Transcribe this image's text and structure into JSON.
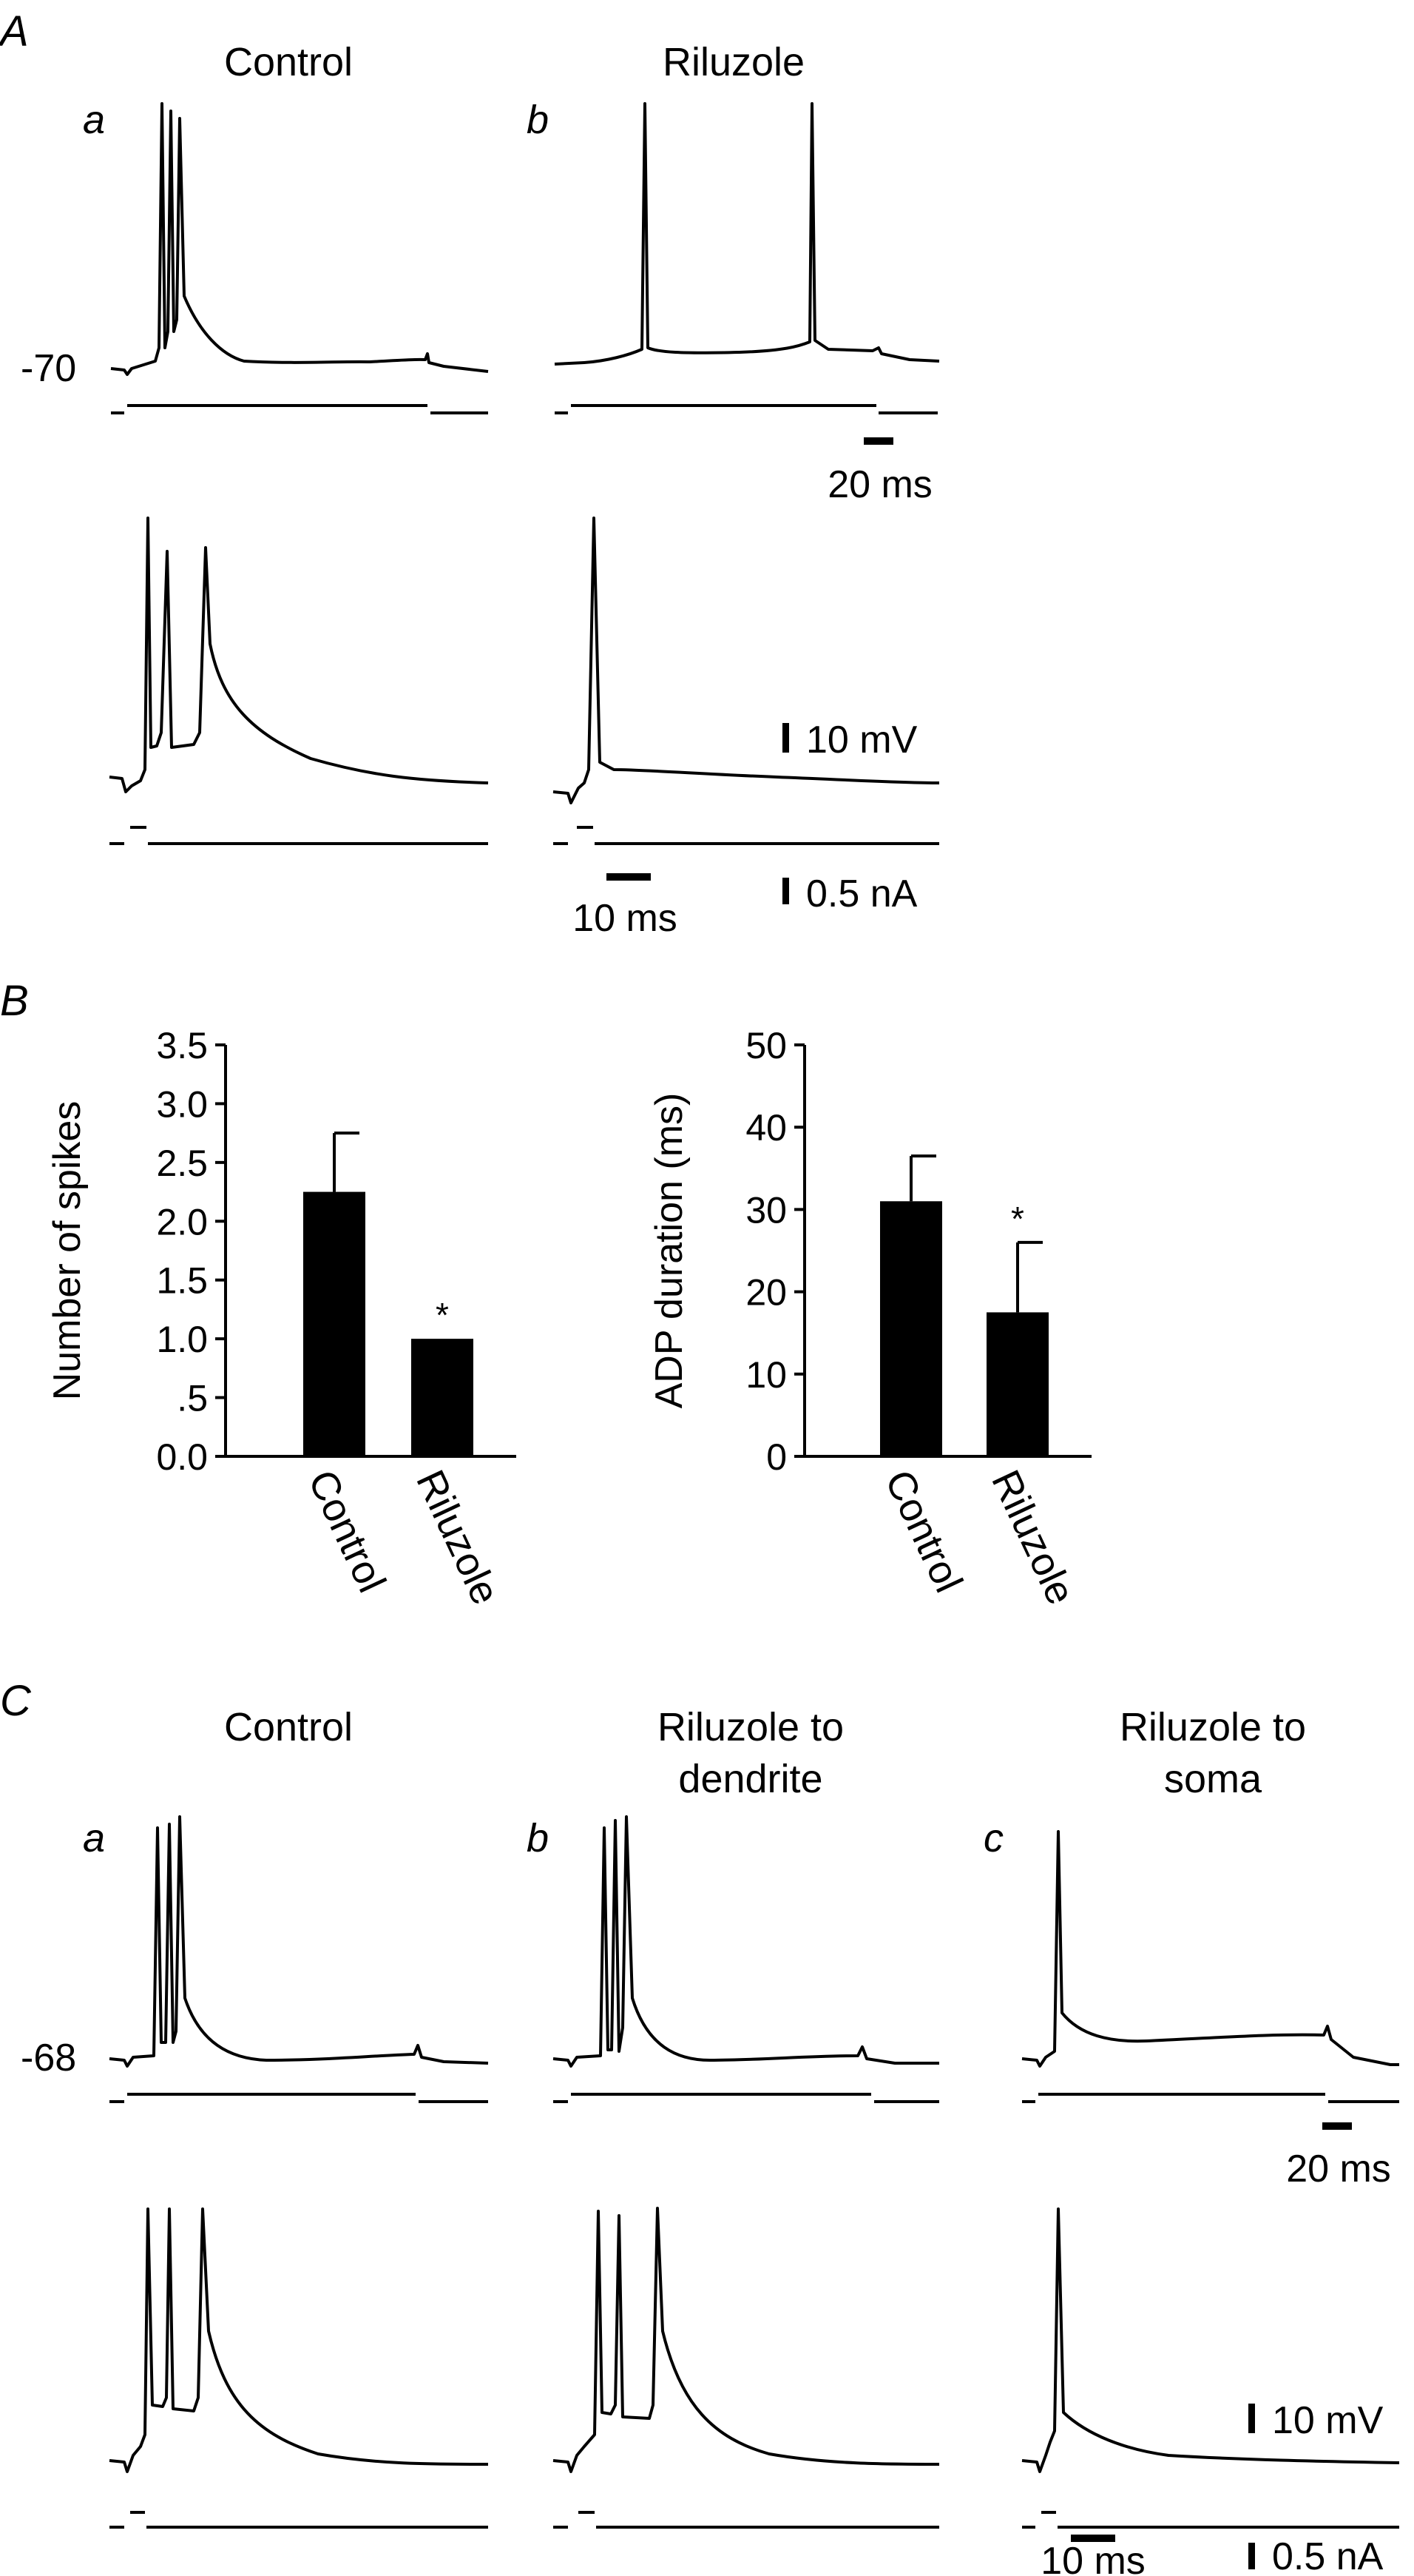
{
  "panel_A": {
    "letter": "A",
    "col_titles": [
      "Control",
      "Riluzole"
    ],
    "sub_letters": [
      "a",
      "b"
    ],
    "vm_label": "-70",
    "scale_time_top": "20 ms",
    "scale_time_bottom": "10 ms",
    "scale_voltage": "10 mV",
    "scale_current": "0.5 nA"
  },
  "panel_B": {
    "letter": "B"
  },
  "panel_C": {
    "letter": "C",
    "col_titles": [
      [
        "Control"
      ],
      [
        "Riluzole to",
        "dendrite"
      ],
      [
        "Riluzole to",
        "soma"
      ]
    ],
    "sub_letters": [
      "a",
      "b",
      "c"
    ],
    "vm_label": "-68",
    "scale_time_top": "20 ms",
    "scale_time_bottom": "10 ms",
    "scale_voltage": "10 mV",
    "scale_current": "0.5 nA"
  },
  "chart_data": [
    {
      "type": "bar",
      "categories": [
        "Control",
        "Riluzole"
      ],
      "values": [
        2.25,
        1.0
      ],
      "error": [
        0.5,
        0
      ],
      "significance": [
        "",
        "*"
      ],
      "ylabel": "Number of spikes",
      "ylim": [
        0,
        3.5
      ],
      "yticks": [
        0,
        0.5,
        1.0,
        1.5,
        2.0,
        2.5,
        3.0,
        3.5
      ],
      "yticklabels": [
        "0.0",
        ".5",
        "1.0",
        "1.5",
        "2.0",
        "2.5",
        "3.0",
        "3.5"
      ],
      "bar_color": "#000000"
    },
    {
      "type": "bar",
      "categories": [
        "Control",
        "Riluzole"
      ],
      "values": [
        31,
        17.5
      ],
      "error": [
        5.5,
        8.5
      ],
      "significance": [
        "",
        "*"
      ],
      "ylabel": "ADP duration (ms)",
      "ylim": [
        0,
        50
      ],
      "yticks": [
        0,
        10,
        20,
        30,
        40,
        50
      ],
      "yticklabels": [
        "0",
        "10",
        "20",
        "30",
        "40",
        "50"
      ],
      "bar_color": "#000000"
    }
  ]
}
